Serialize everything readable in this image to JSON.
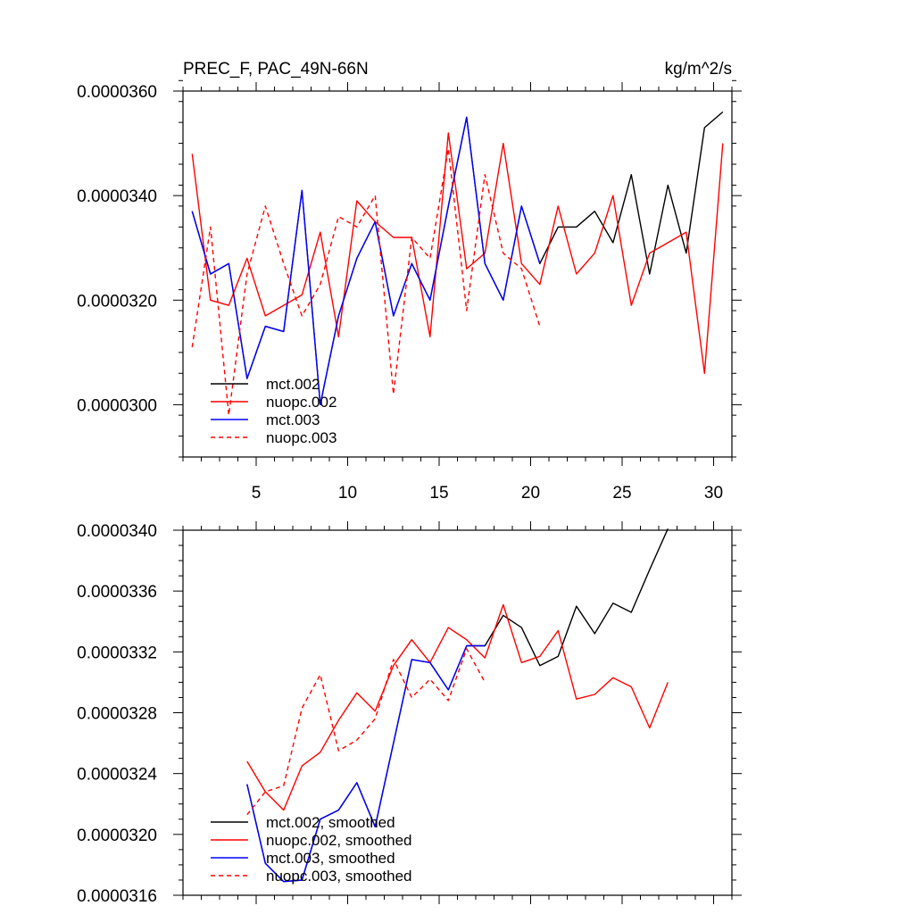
{
  "chart_data": [
    {
      "type": "line",
      "title": "PREC_F, PAC_49N-66N",
      "units": "kg/m^2/s",
      "xlabel": "",
      "ylabel": "",
      "xlim": [
        1,
        31
      ],
      "ylim": [
        2.9e-05,
        3.6e-05
      ],
      "xticks": [
        5,
        10,
        15,
        20,
        25,
        30
      ],
      "xtick_labels": [
        "5",
        "10",
        "15",
        "20",
        "25",
        "30"
      ],
      "yticks": [
        3e-05,
        3.2e-05,
        3.4e-05,
        3.6e-05
      ],
      "ytick_labels": [
        "0.0000300",
        "0.0000320",
        "0.0000340",
        "0.0000360"
      ],
      "legend_position": "bottom-left",
      "series": [
        {
          "name": "mct.002",
          "color": "#000000",
          "dash": "solid",
          "x": [
            1.5,
            2.5,
            3.5,
            4.5,
            5.5,
            6.5,
            7.5,
            8.5,
            9.5,
            10.5,
            11.5,
            12.5,
            13.5,
            14.5,
            15.5,
            16.5,
            17.5,
            18.5,
            19.5,
            20.5,
            21.5,
            22.5,
            23.5,
            24.5,
            25.5,
            26.5,
            27.5,
            28.5,
            29.5,
            30.5
          ],
          "values": [
            3.37e-05,
            3.25e-05,
            3.27e-05,
            3.05e-05,
            3.15e-05,
            3.14e-05,
            3.41e-05,
            3e-05,
            3.17e-05,
            3.28e-05,
            3.35e-05,
            3.17e-05,
            3.27e-05,
            3.2e-05,
            3.38e-05,
            3.55e-05,
            3.27e-05,
            3.2e-05,
            3.38e-05,
            3.27e-05,
            3.34e-05,
            3.34e-05,
            3.37e-05,
            3.31e-05,
            3.44e-05,
            3.25e-05,
            3.42e-05,
            3.29e-05,
            3.53e-05,
            3.56e-05
          ]
        },
        {
          "name": "nuopc.002",
          "color": "#ff0000",
          "dash": "solid",
          "x": [
            1.5,
            2.5,
            3.5,
            4.5,
            5.5,
            6.5,
            7.5,
            8.5,
            9.5,
            10.5,
            11.5,
            12.5,
            13.5,
            14.5,
            15.5,
            16.5,
            17.5,
            18.5,
            19.5,
            20.5,
            21.5,
            22.5,
            23.5,
            24.5,
            25.5,
            26.5,
            27.5,
            28.5,
            29.5,
            30.5
          ],
          "values": [
            3.48e-05,
            3.2e-05,
            3.19e-05,
            3.28e-05,
            3.17e-05,
            3.19e-05,
            3.21e-05,
            3.33e-05,
            3.13e-05,
            3.39e-05,
            3.35e-05,
            3.32e-05,
            3.32e-05,
            3.13e-05,
            3.52e-05,
            3.26e-05,
            3.29e-05,
            3.5e-05,
            3.27e-05,
            3.23e-05,
            3.38e-05,
            3.25e-05,
            3.29e-05,
            3.4e-05,
            3.19e-05,
            3.29e-05,
            3.31e-05,
            3.33e-05,
            3.06e-05,
            3.5e-05
          ]
        },
        {
          "name": "mct.003",
          "color": "#0000ff",
          "dash": "solid",
          "x": [
            1.5,
            2.5,
            3.5,
            4.5,
            5.5,
            6.5,
            7.5,
            8.5,
            9.5,
            10.5,
            11.5,
            12.5,
            13.5,
            14.5,
            15.5,
            16.5,
            17.5,
            18.5,
            19.5,
            20.5
          ],
          "values": [
            3.37e-05,
            3.25e-05,
            3.27e-05,
            3.05e-05,
            3.15e-05,
            3.14e-05,
            3.41e-05,
            3e-05,
            3.17e-05,
            3.28e-05,
            3.35e-05,
            3.17e-05,
            3.27e-05,
            3.2e-05,
            3.38e-05,
            3.55e-05,
            3.27e-05,
            3.2e-05,
            3.38e-05,
            3.27e-05
          ]
        },
        {
          "name": "nuopc.003",
          "color": "#ff0000",
          "dash": "dashed",
          "x": [
            1.5,
            2.5,
            3.5,
            4.5,
            5.5,
            6.5,
            7.5,
            8.5,
            9.5,
            10.5,
            11.5,
            12.5,
            13.5,
            14.5,
            15.5,
            16.5,
            17.5,
            18.5,
            19.5,
            20.5
          ],
          "values": [
            3.11e-05,
            3.34e-05,
            2.98e-05,
            3.25e-05,
            3.38e-05,
            3.27e-05,
            3.17e-05,
            3.23e-05,
            3.36e-05,
            3.34e-05,
            3.4e-05,
            3.02e-05,
            3.32e-05,
            3.28e-05,
            3.49e-05,
            3.18e-05,
            3.44e-05,
            3.29e-05,
            3.26e-05,
            3.15e-05
          ]
        }
      ]
    },
    {
      "type": "line",
      "title": "",
      "xlabel": "",
      "ylabel": "",
      "xlim": [
        1,
        31
      ],
      "ylim": [
        3.16e-05,
        3.4e-05
      ],
      "xticks": [
        5,
        10,
        15,
        20,
        25,
        30
      ],
      "yticks": [
        3.16e-05,
        3.2e-05,
        3.24e-05,
        3.28e-05,
        3.32e-05,
        3.36e-05,
        3.4e-05
      ],
      "ytick_labels": [
        "0.0000316",
        "0.0000320",
        "0.0000324",
        "0.0000328",
        "0.0000332",
        "0.0000336",
        "0.0000340"
      ],
      "legend_position": "bottom-left",
      "series": [
        {
          "name": "mct.002, smoothed",
          "color": "#000000",
          "dash": "solid",
          "x": [
            4.5,
            5.5,
            6.5,
            7.5,
            8.5,
            9.5,
            10.5,
            11.5,
            12.5,
            13.5,
            14.5,
            15.5,
            16.5,
            17.5,
            18.5,
            19.5,
            20.5,
            21.5,
            22.5,
            23.5,
            24.5,
            25.5,
            26.5,
            27.5
          ],
          "values": [
            3.233e-05,
            3.181e-05,
            3.169e-05,
            3.17e-05,
            3.21e-05,
            3.216e-05,
            3.234e-05,
            3.205e-05,
            3.26e-05,
            3.315e-05,
            3.313e-05,
            3.295e-05,
            3.324e-05,
            3.324e-05,
            3.344e-05,
            3.336e-05,
            3.311e-05,
            3.317e-05,
            3.35e-05,
            3.332e-05,
            3.352e-05,
            3.346e-05,
            3.374e-05,
            3.401e-05
          ]
        },
        {
          "name": "nuopc.002, smoothed",
          "color": "#ff0000",
          "dash": "solid",
          "x": [
            4.5,
            5.5,
            6.5,
            7.5,
            8.5,
            9.5,
            10.5,
            11.5,
            12.5,
            13.5,
            14.5,
            15.5,
            16.5,
            17.5,
            18.5,
            19.5,
            20.5,
            21.5,
            22.5,
            23.5,
            24.5,
            25.5,
            26.5,
            27.5
          ],
          "values": [
            3.248e-05,
            3.228e-05,
            3.216e-05,
            3.245e-05,
            3.254e-05,
            3.275e-05,
            3.293e-05,
            3.281e-05,
            3.311e-05,
            3.328e-05,
            3.313e-05,
            3.336e-05,
            3.328e-05,
            3.316e-05,
            3.351e-05,
            3.313e-05,
            3.317e-05,
            3.334e-05,
            3.289e-05,
            3.292e-05,
            3.303e-05,
            3.297e-05,
            3.27e-05,
            3.3e-05
          ]
        },
        {
          "name": "mct.003, smoothed",
          "color": "#0000ff",
          "dash": "solid",
          "x": [
            4.5,
            5.5,
            6.5,
            7.5,
            8.5,
            9.5,
            10.5,
            11.5,
            12.5,
            13.5,
            14.5,
            15.5,
            16.5,
            17.5
          ],
          "values": [
            3.233e-05,
            3.181e-05,
            3.169e-05,
            3.17e-05,
            3.21e-05,
            3.216e-05,
            3.234e-05,
            3.205e-05,
            3.26e-05,
            3.315e-05,
            3.313e-05,
            3.295e-05,
            3.324e-05,
            3.324e-05
          ]
        },
        {
          "name": "nuopc.003, smoothed",
          "color": "#ff0000",
          "dash": "dashed",
          "x": [
            4.5,
            5.5,
            6.5,
            7.5,
            8.5,
            9.5,
            10.5,
            11.5,
            12.5,
            13.5,
            14.5,
            15.5,
            16.5,
            17.5
          ],
          "values": [
            3.213e-05,
            3.228e-05,
            3.232e-05,
            3.283e-05,
            3.305e-05,
            3.255e-05,
            3.262e-05,
            3.276e-05,
            3.315e-05,
            3.29e-05,
            3.302e-05,
            3.288e-05,
            3.322e-05,
            3.3e-05
          ]
        }
      ]
    }
  ]
}
